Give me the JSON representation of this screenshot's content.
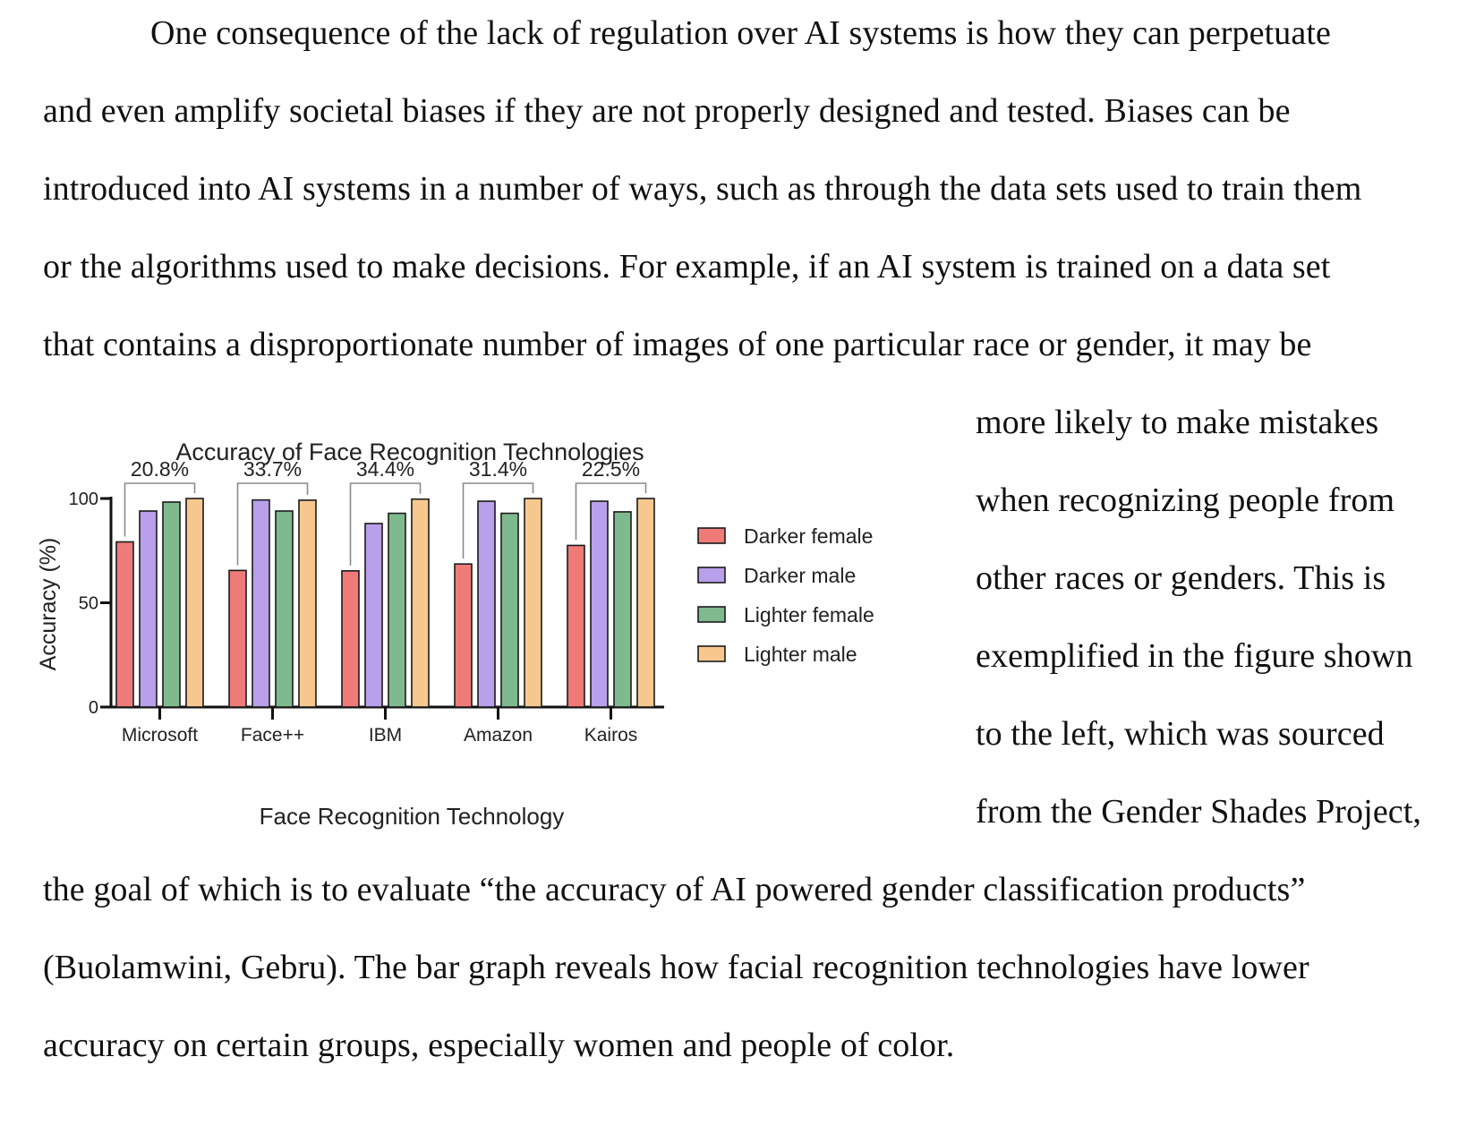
{
  "document": {
    "paragraph_lines": [
      "One consequence of the lack of regulation over AI systems is how they can perpetuate",
      "and even amplify societal biases if they are not properly designed and tested. Biases can be",
      "introduced into AI systems in a number of ways, such as through the data sets used to train them",
      "or the algorithms used to make decisions. For example, if an AI system is trained on a data set",
      "that contains a disproportionate number of images of one particular race or gender, it may be",
      "more likely to make mistakes",
      "when recognizing people from",
      "other races or genders. This is",
      "exemplified in the figure shown",
      "to the left, which was sourced",
      "from the Gender Shades Project,",
      "the goal of which is to evaluate “the accuracy of AI powered gender classification products”",
      "(Buolamwini, Gebru). The bar graph reveals how facial recognition technologies have lower",
      "accuracy on certain groups, especially women and people of color."
    ]
  },
  "chart_data": {
    "type": "bar",
    "title": "Accuracy of Face Recognition Technologies",
    "xlabel": "Face Recognition Technology",
    "ylabel": "Accuracy (%)",
    "ylim": [
      0,
      100
    ],
    "yticks": [
      0,
      50,
      100
    ],
    "ytick_labels": [
      "0",
      "50",
      "100"
    ],
    "categories": [
      "Microsoft",
      "Face++",
      "IBM",
      "Amazon",
      "Kairos"
    ],
    "gap_labels": [
      "20.8%",
      "33.7%",
      "34.4%",
      "31.4%",
      "22.5%"
    ],
    "series": [
      {
        "name": "Darker female",
        "color": "#ef7b78",
        "values": [
          79.2,
          65.5,
          65.3,
          68.6,
          77.5
        ]
      },
      {
        "name": "Darker male",
        "color": "#b9a0ea",
        "values": [
          94.0,
          99.3,
          88.0,
          98.7,
          98.7
        ]
      },
      {
        "name": "Lighter female",
        "color": "#7fba8e",
        "values": [
          98.3,
          94.0,
          92.9,
          92.9,
          93.6
        ]
      },
      {
        "name": "Lighter male",
        "color": "#f7c88e",
        "values": [
          100,
          99.2,
          99.7,
          100,
          100
        ]
      }
    ],
    "legend_position": "right",
    "grid": false
  }
}
